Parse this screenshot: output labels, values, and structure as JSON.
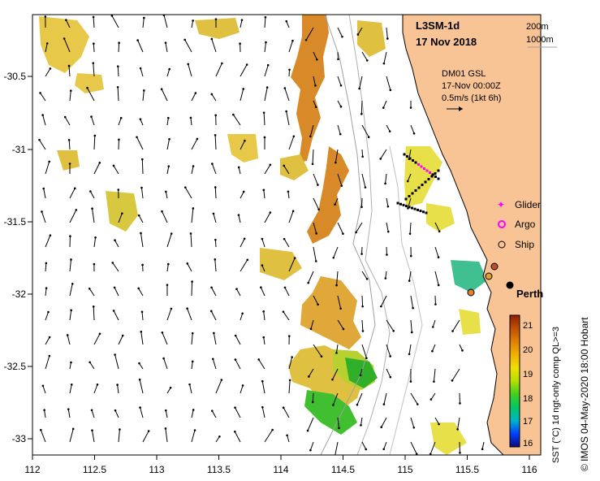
{
  "map": {
    "product": "L3SM-1d",
    "date": "17 Nov 2018",
    "isobaths": [
      "200m",
      "1000m"
    ],
    "vector_info": [
      "DM01 GSL",
      "17-Nov 00:00Z",
      "0.5m/s (1kt 6h)"
    ],
    "legend": [
      {
        "label": "Glider",
        "marker": "plus",
        "color": "#ff00ff"
      },
      {
        "label": "Argo",
        "marker": "circle-ring",
        "color": "#ff00ff"
      },
      {
        "label": "Ship",
        "marker": "circle-open",
        "color": "#000000"
      }
    ],
    "city": "Perth",
    "colorbar": {
      "label": "SST (°C) 1d ngt-only comp QL>=3",
      "ticks": [
        "21",
        "20",
        "19",
        "18",
        "17",
        "16"
      ],
      "colors": [
        "#0a0a80",
        "#0040ff",
        "#00b4c8",
        "#00c864",
        "#40d020",
        "#b4e000",
        "#f0e000",
        "#f0b000",
        "#e08000",
        "#c05000",
        "#902000"
      ]
    },
    "credit": "© IMOS 04-May-2020 18:00 Hobart",
    "x_ticks": [
      "112",
      "112.5",
      "113",
      "113.5",
      "114",
      "114.5",
      "115",
      "115.5",
      "116"
    ],
    "y_ticks": [
      "-30.5",
      "-31",
      "-31.5",
      "-32",
      "-32.5",
      "-33"
    ],
    "colors": {
      "land": "#f8c496",
      "ocean": "#ffffff",
      "sst_warm": "#e09030",
      "sst_mid": "#e8d040",
      "sst_cool": "#40c030"
    }
  }
}
